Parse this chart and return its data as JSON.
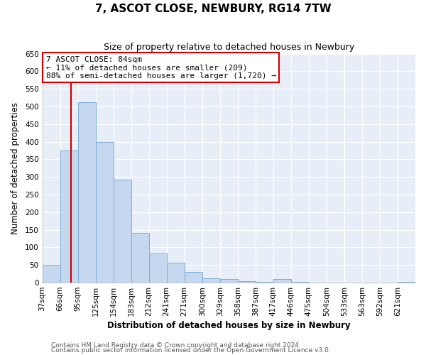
{
  "title": "7, ASCOT CLOSE, NEWBURY, RG14 7TW",
  "subtitle": "Size of property relative to detached houses in Newbury",
  "xlabel": "Distribution of detached houses by size in Newbury",
  "ylabel": "Number of detached properties",
  "bar_labels": [
    "37sqm",
    "66sqm",
    "95sqm",
    "125sqm",
    "154sqm",
    "183sqm",
    "212sqm",
    "241sqm",
    "271sqm",
    "300sqm",
    "329sqm",
    "358sqm",
    "387sqm",
    "417sqm",
    "446sqm",
    "475sqm",
    "504sqm",
    "533sqm",
    "563sqm",
    "592sqm",
    "621sqm"
  ],
  "bar_values": [
    50,
    375,
    512,
    400,
    292,
    142,
    82,
    57,
    30,
    12,
    10,
    5,
    3,
    10,
    3,
    1,
    0,
    0,
    0,
    0,
    2
  ],
  "bar_color": "#c5d8f0",
  "bar_edge_color": "#7aadd4",
  "vline_x_index": 1.6,
  "vline_color": "#cc0000",
  "ylim": [
    0,
    650
  ],
  "yticks": [
    0,
    50,
    100,
    150,
    200,
    250,
    300,
    350,
    400,
    450,
    500,
    550,
    600,
    650
  ],
  "annotation_title": "7 ASCOT CLOSE: 84sqm",
  "annotation_line1": "← 11% of detached houses are smaller (209)",
  "annotation_line2": "88% of semi-detached houses are larger (1,720) →",
  "annotation_box_facecolor": "#ffffff",
  "annotation_box_edgecolor": "#cc0000",
  "footnote1": "Contains HM Land Registry data © Crown copyright and database right 2024.",
  "footnote2": "Contains public sector information licensed under the Open Government Licence v3.0.",
  "background_color": "#e8eef8",
  "plot_bg_color": "#e8eef8",
  "grid_color": "#ffffff",
  "title_fontsize": 11,
  "subtitle_fontsize": 9,
  "axis_label_fontsize": 8.5,
  "tick_fontsize": 7.5,
  "annotation_fontsize": 8,
  "footnote_fontsize": 6.5
}
